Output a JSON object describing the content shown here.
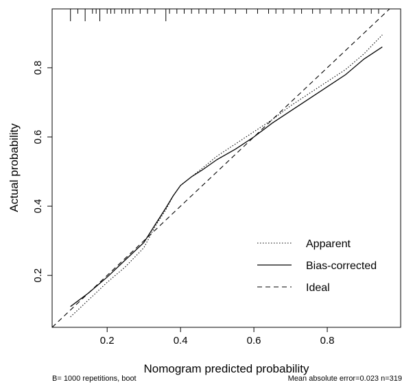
{
  "chart_data": {
    "type": "line",
    "xlabel": "Nomogram predicted probability",
    "ylabel": "Actual probability",
    "xlim": [
      0.05,
      1.0
    ],
    "ylim": [
      0.05,
      0.97
    ],
    "xticks": [
      "0.2",
      "0.4",
      "0.6",
      "0.8"
    ],
    "xtick_values": [
      0.2,
      0.4,
      0.6,
      0.8
    ],
    "yticks": [
      "0.2",
      "0.4",
      "0.6",
      "0.8"
    ],
    "ytick_values": [
      0.2,
      0.4,
      0.6,
      0.8
    ],
    "grid": false,
    "legend_position": "bottom-right",
    "series": [
      {
        "name": "Apparent",
        "style": "dotted",
        "x": [
          0.1,
          0.15,
          0.2,
          0.25,
          0.3,
          0.33,
          0.36,
          0.38,
          0.4,
          0.43,
          0.46,
          0.5,
          0.55,
          0.6,
          0.65,
          0.7,
          0.75,
          0.8,
          0.85,
          0.9,
          0.95
        ],
        "y": [
          0.08,
          0.13,
          0.18,
          0.225,
          0.28,
          0.34,
          0.39,
          0.43,
          0.46,
          0.485,
          0.51,
          0.545,
          0.58,
          0.615,
          0.65,
          0.69,
          0.725,
          0.76,
          0.795,
          0.84,
          0.895
        ]
      },
      {
        "name": "Bias-corrected",
        "style": "solid",
        "x": [
          0.1,
          0.15,
          0.2,
          0.25,
          0.3,
          0.33,
          0.36,
          0.38,
          0.4,
          0.43,
          0.46,
          0.5,
          0.55,
          0.6,
          0.65,
          0.7,
          0.75,
          0.8,
          0.85,
          0.9,
          0.95
        ],
        "y": [
          0.11,
          0.15,
          0.195,
          0.245,
          0.295,
          0.345,
          0.395,
          0.43,
          0.46,
          0.485,
          0.505,
          0.535,
          0.565,
          0.6,
          0.64,
          0.675,
          0.71,
          0.745,
          0.78,
          0.825,
          0.86
        ]
      },
      {
        "name": "Ideal",
        "style": "dashed",
        "x": [
          0.05,
          1.0
        ],
        "y": [
          0.05,
          1.0
        ]
      }
    ],
    "rug_x": [
      0.1,
      0.12,
      0.14,
      0.16,
      0.17,
      0.18,
      0.2,
      0.21,
      0.22,
      0.24,
      0.25,
      0.26,
      0.27,
      0.29,
      0.31,
      0.33,
      0.36,
      0.37,
      0.39,
      0.41,
      0.43,
      0.45,
      0.47,
      0.49,
      0.52,
      0.55,
      0.58,
      0.61,
      0.64,
      0.66,
      0.68,
      0.71,
      0.73,
      0.76,
      0.78,
      0.81,
      0.84,
      0.86,
      0.88,
      0.9,
      0.92,
      0.94
    ],
    "rug_long_x": [
      0.1,
      0.14,
      0.18,
      0.36
    ]
  },
  "footer": {
    "left": "B= 1000 repetitions, boot",
    "right": "Mean absolute error=0.023 n=319"
  }
}
